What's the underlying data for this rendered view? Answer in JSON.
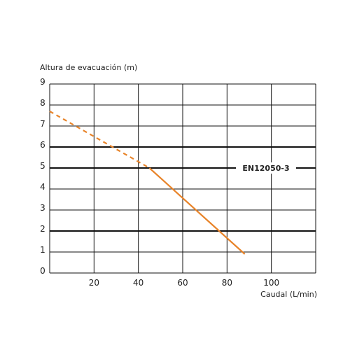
{
  "chart_data": {
    "type": "line",
    "title": "",
    "ylabel": "Altura de evacuación (m)",
    "xlabel": "Caudal (L/min)",
    "xlim": [
      0,
      120
    ],
    "ylim": [
      0,
      9
    ],
    "x_ticks": [
      {
        "value": 20,
        "label": "20"
      },
      {
        "value": 40,
        "label": "40"
      },
      {
        "value": 60,
        "label": "60"
      },
      {
        "value": 80,
        "label": "80"
      },
      {
        "value": 100,
        "label": "100"
      }
    ],
    "y_ticks": [
      {
        "value": 0,
        "label": "0"
      },
      {
        "value": 1,
        "label": "1"
      },
      {
        "value": 2,
        "label": "2"
      },
      {
        "value": 3,
        "label": "3"
      },
      {
        "value": 4,
        "label": "4"
      },
      {
        "value": 5,
        "label": "5"
      },
      {
        "value": 6,
        "label": "6"
      },
      {
        "value": 7,
        "label": "7"
      },
      {
        "value": 8,
        "label": "8"
      },
      {
        "value": 9,
        "label": "9"
      }
    ],
    "bold_gridlines_y": [
      2,
      5,
      6
    ],
    "reference_line": {
      "y": 5,
      "label": "EN12050-3"
    },
    "series": [
      {
        "style": "dashed",
        "color": "#e8842a",
        "x": [
          0,
          45
        ],
        "y": [
          7.7,
          5.0
        ]
      },
      {
        "style": "solid",
        "color": "#e8842a",
        "x": [
          45,
          88
        ],
        "y": [
          5.0,
          0.9
        ]
      }
    ],
    "grid": true
  }
}
